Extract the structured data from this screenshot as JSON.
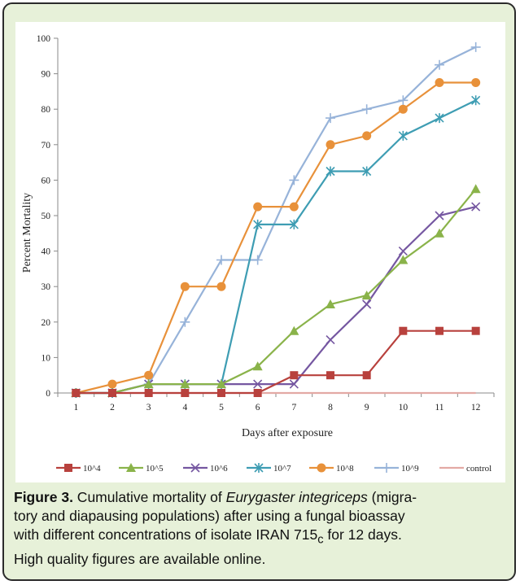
{
  "chart_data": {
    "type": "line",
    "title": "",
    "xlabel": "Days after exposure",
    "ylabel": "Percent Mortality",
    "x": [
      1,
      2,
      3,
      4,
      5,
      6,
      7,
      8,
      9,
      10,
      11,
      12
    ],
    "xlim": [
      1,
      12
    ],
    "ylim": [
      0,
      100
    ],
    "yticks": [
      0,
      10,
      20,
      30,
      40,
      50,
      60,
      70,
      80,
      90,
      100
    ],
    "legend_position": "bottom",
    "grid": false,
    "series": [
      {
        "name": "10^4",
        "color": "#b8413d",
        "marker": "square",
        "values": [
          0,
          0,
          0,
          0,
          0,
          0,
          5,
          5,
          5,
          17.5,
          17.5,
          17.5
        ]
      },
      {
        "name": "10^5",
        "color": "#8ab34a",
        "marker": "triangle",
        "values": [
          0,
          0,
          2.5,
          2.5,
          2.5,
          7.5,
          17.5,
          25,
          27.5,
          37.5,
          45,
          57.5
        ]
      },
      {
        "name": "10^6",
        "color": "#7557a1",
        "marker": "x",
        "values": [
          0,
          0,
          2.5,
          2.5,
          2.5,
          2.5,
          2.5,
          15,
          25,
          40,
          50,
          52.5
        ]
      },
      {
        "name": "10^7",
        "color": "#3e9db3",
        "marker": "star",
        "values": [
          0,
          0,
          2.5,
          2.5,
          2.5,
          47.5,
          47.5,
          62.5,
          62.5,
          72.5,
          77.5,
          82.5
        ]
      },
      {
        "name": "10^8",
        "color": "#e8913a",
        "marker": "circle",
        "values": [
          0,
          2.5,
          5,
          30,
          30,
          52.5,
          52.5,
          70,
          72.5,
          80,
          87.5,
          87.5
        ]
      },
      {
        "name": "10^9",
        "color": "#97b3d9",
        "marker": "plus",
        "values": [
          0,
          0,
          2.5,
          20,
          37.5,
          37.5,
          60,
          77.5,
          80,
          82.5,
          92.5,
          97.5
        ]
      },
      {
        "name": "control",
        "color": "#e3a9a4",
        "marker": "none",
        "values": [
          0,
          0,
          0,
          0,
          0,
          0,
          0,
          0,
          0,
          0,
          0,
          0
        ]
      }
    ]
  },
  "caption": {
    "label": "Figure 3.",
    "text_before": " Cumulative mortality of ",
    "species": "Eurygaster integriceps",
    "text_mid": " (migra-",
    "line2": "tory and diapausing populations) after using a fungal bioassay",
    "line3_a": "with different concentrations of isolate IRAN 715",
    "line3_sub": "c",
    "line3_b": " for 12 days.",
    "line4": "High quality figures are available online."
  }
}
